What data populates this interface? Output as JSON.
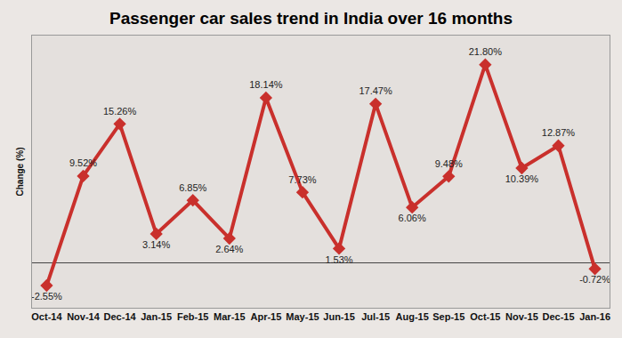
{
  "chart_data": {
    "type": "line",
    "title": "Passenger car sales trend in India over 16 months",
    "y_label": "Change (%)",
    "categories": [
      "Oct-14",
      "Nov-14",
      "Dec-14",
      "Jan-15",
      "Feb-15",
      "Mar-15",
      "Apr-15",
      "May-15",
      "Jun-15",
      "Jul-15",
      "Aug-15",
      "Sep-15",
      "Oct-15",
      "Nov-15",
      "Dec-15",
      "Jan-16"
    ],
    "values": [
      -2.55,
      9.52,
      15.26,
      3.14,
      6.85,
      2.64,
      18.14,
      7.73,
      1.53,
      17.47,
      6.06,
      9.48,
      21.8,
      10.39,
      12.87,
      -0.72
    ],
    "value_labels": [
      "-2.55%",
      "9.52%",
      "15.26%",
      "3.14%",
      "6.85%",
      "2.64%",
      "18.14%",
      "7.73%",
      "1.53%",
      "17.47%",
      "6.06%",
      "9.48%",
      "21.80%",
      "10.39%",
      "12.87%",
      "-0.72%"
    ],
    "color": "#c9302c",
    "marker": "diamond",
    "line_style": "solid",
    "data_labels": true,
    "ylim": [
      -5,
      25
    ],
    "yticks": [
      0
    ],
    "grid": true,
    "tick_labels": "x"
  }
}
